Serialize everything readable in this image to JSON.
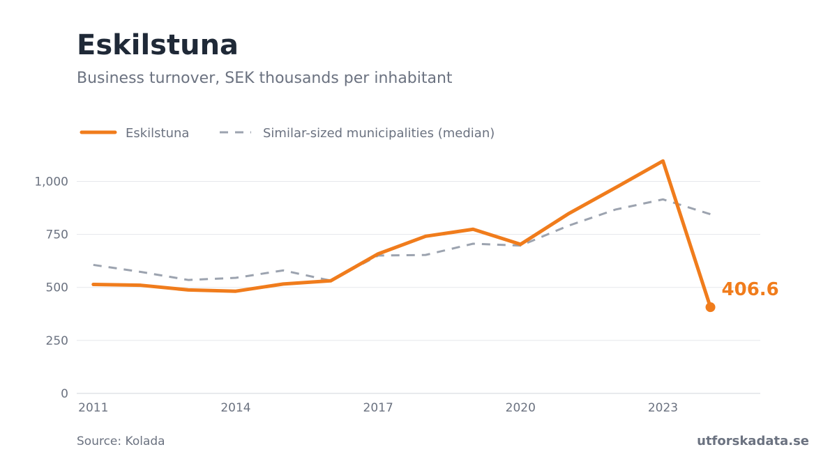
{
  "header": {
    "title": "Eskilstuna",
    "subtitle": "Business turnover, SEK thousands per inhabitant"
  },
  "footer": {
    "source": "Source: Kolada",
    "brand": "utforskadata.se"
  },
  "colors": {
    "primary": "#f07c1c",
    "comparison": "#9ca3af",
    "grid": "#e5e7eb",
    "axis_text": "#6b7280"
  },
  "chart_data": {
    "type": "line",
    "x": [
      2011,
      2012,
      2013,
      2014,
      2015,
      2016,
      2017,
      2018,
      2019,
      2020,
      2021,
      2022,
      2023,
      2024
    ],
    "x_ticks": [
      "2011",
      "2014",
      "2017",
      "2020",
      "2023"
    ],
    "y_ticks": [
      "0",
      "250",
      "500",
      "750",
      "1,000"
    ],
    "y_tick_values": [
      0,
      250,
      500,
      750,
      1000
    ],
    "ylim": [
      0,
      1100
    ],
    "grid": true,
    "legend_position": "top-left",
    "series": [
      {
        "name": "Eskilstuna",
        "style": "solid",
        "values": [
          514,
          510,
          488,
          482,
          516,
          531,
          658,
          741,
          774,
          703,
          846,
          970,
          1096,
          406.6
        ]
      },
      {
        "name": "Similar-sized municipalities (median)",
        "style": "dashed",
        "values": [
          606,
          573,
          535,
          545,
          580,
          532,
          650,
          653,
          706,
          697,
          790,
          867,
          915,
          845
        ]
      }
    ],
    "end_label": "406.6"
  }
}
